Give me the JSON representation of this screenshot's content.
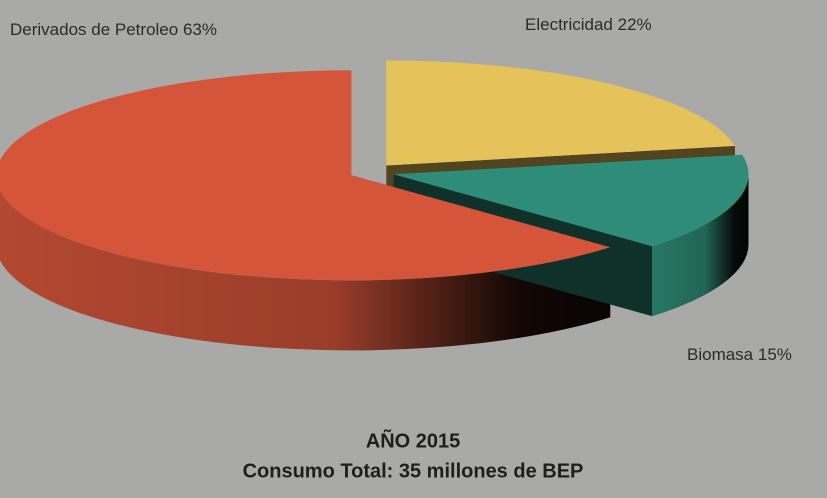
{
  "chart_data": {
    "type": "pie3d",
    "categories": [
      "Derivados de Petroleo",
      "Electricidad",
      "Biomasa"
    ],
    "values": [
      63,
      22,
      15
    ],
    "value_labels": [
      "63%",
      "22%",
      "15%"
    ],
    "colors": [
      "#d4553a",
      "#e6c35a",
      "#2f8c78"
    ],
    "title": "AÑO 2015",
    "subtitle": "Consumo Total: 35 millones de BEP"
  }
}
